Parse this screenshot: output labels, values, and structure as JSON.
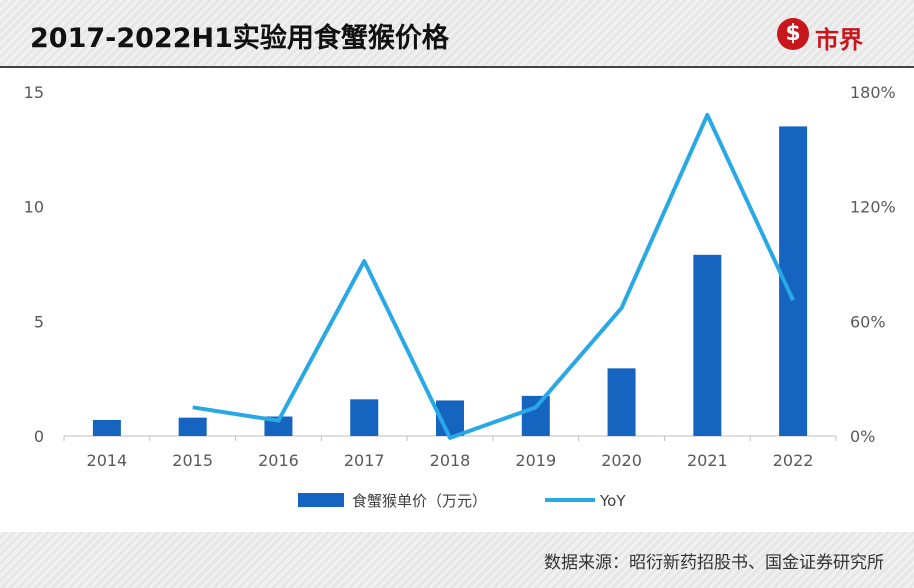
{
  "header": {
    "title": "2017-2022H1实验用食蟹猴价格",
    "logo_icon": "s-logo-icon",
    "logo_text": "市界"
  },
  "footer": {
    "source": "数据来源：昭衍新药招股书、国金证券研究所"
  },
  "colors": {
    "bar": "#1565c0",
    "line": "#29a8e6",
    "logo": "#c8161d"
  },
  "chart_data": {
    "type": "bar",
    "categories": [
      "2014",
      "2015",
      "2016",
      "2017",
      "2018",
      "2019",
      "2020",
      "2021",
      "2022"
    ],
    "series": [
      {
        "name": "食蟹猴单价（万元）",
        "type": "bar",
        "axis": "left",
        "values": [
          0.7,
          0.8,
          0.85,
          1.6,
          1.55,
          1.75,
          2.95,
          7.9,
          13.5
        ]
      },
      {
        "name": "YoY",
        "type": "line",
        "axis": "right",
        "values": [
          null,
          0.15,
          0.08,
          0.915,
          -0.01,
          0.15,
          0.67,
          1.68,
          0.71
        ]
      }
    ],
    "y_left": {
      "ticks": [
        "0",
        "5",
        "10",
        "15"
      ],
      "ylim": [
        0,
        15
      ]
    },
    "y_right": {
      "ticks": [
        "0%",
        "60%",
        "120%",
        "180%"
      ],
      "ylim": [
        0,
        1.8
      ]
    },
    "legend": {
      "position": "bottom"
    },
    "grid": false
  }
}
